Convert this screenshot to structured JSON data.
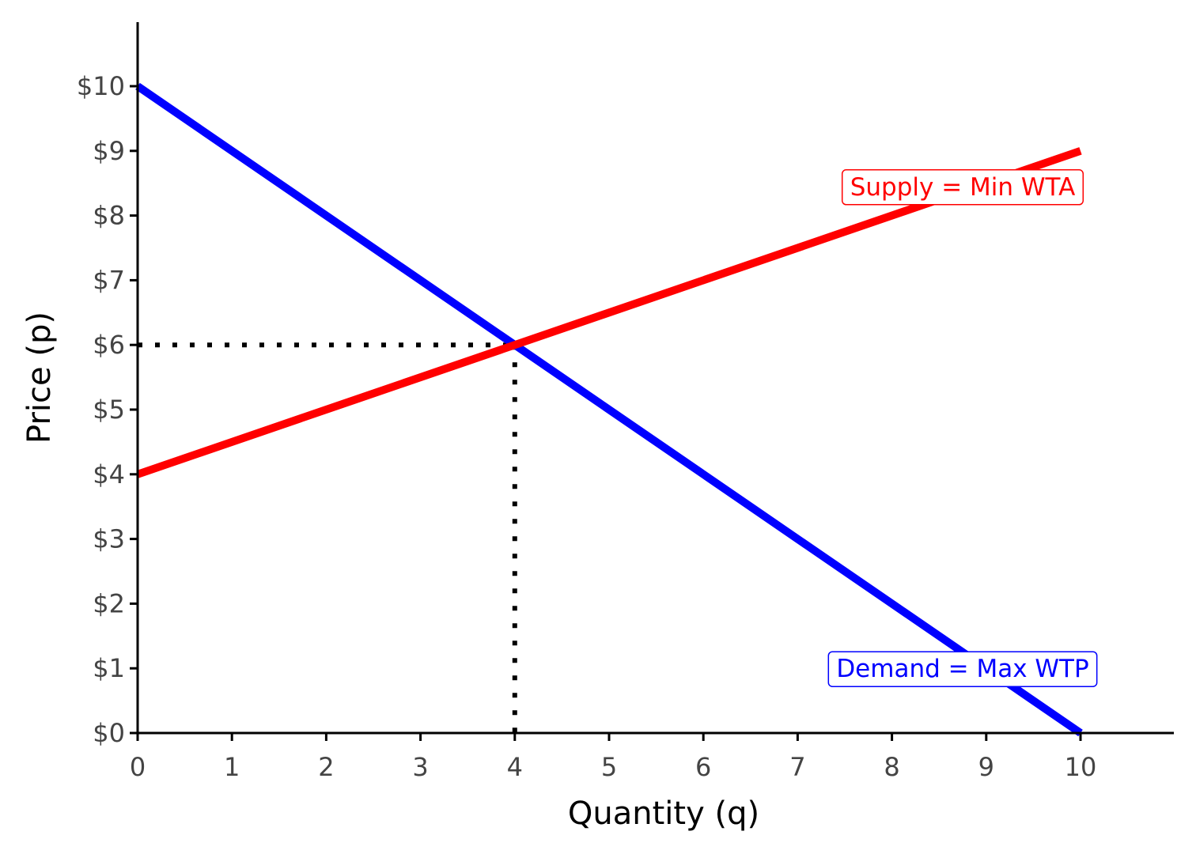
{
  "chart_data": {
    "type": "line",
    "title": "",
    "xlabel": "Quantity (q)",
    "ylabel": "Price (p)",
    "xlim": [
      0,
      11
    ],
    "ylim": [
      0,
      11
    ],
    "x_ticks": [
      0,
      1,
      2,
      3,
      4,
      5,
      6,
      7,
      8,
      9,
      10
    ],
    "x_tick_labels": [
      "0",
      "1",
      "2",
      "3",
      "4",
      "5",
      "6",
      "7",
      "8",
      "9",
      "10"
    ],
    "y_ticks": [
      0,
      1,
      2,
      3,
      4,
      5,
      6,
      7,
      8,
      9,
      10
    ],
    "y_tick_labels": [
      "$0",
      "$1",
      "$2",
      "$3",
      "$4",
      "$5",
      "$6",
      "$7",
      "$8",
      "$9",
      "$10"
    ],
    "grid": false,
    "legend": "none",
    "series": [
      {
        "name": "Demand = Max WTP",
        "color": "#0000ff",
        "x": [
          0,
          10
        ],
        "y": [
          10,
          0
        ],
        "label_at": {
          "x": 8.75,
          "y": 1
        }
      },
      {
        "name": "Supply = Min WTA",
        "color": "#ff0000",
        "x": [
          0,
          10
        ],
        "y": [
          4,
          9
        ],
        "label_at": {
          "x": 8.75,
          "y": 8.45
        }
      }
    ],
    "equilibrium": {
      "q": 4,
      "p": 6
    },
    "guide_color": "#000000"
  }
}
